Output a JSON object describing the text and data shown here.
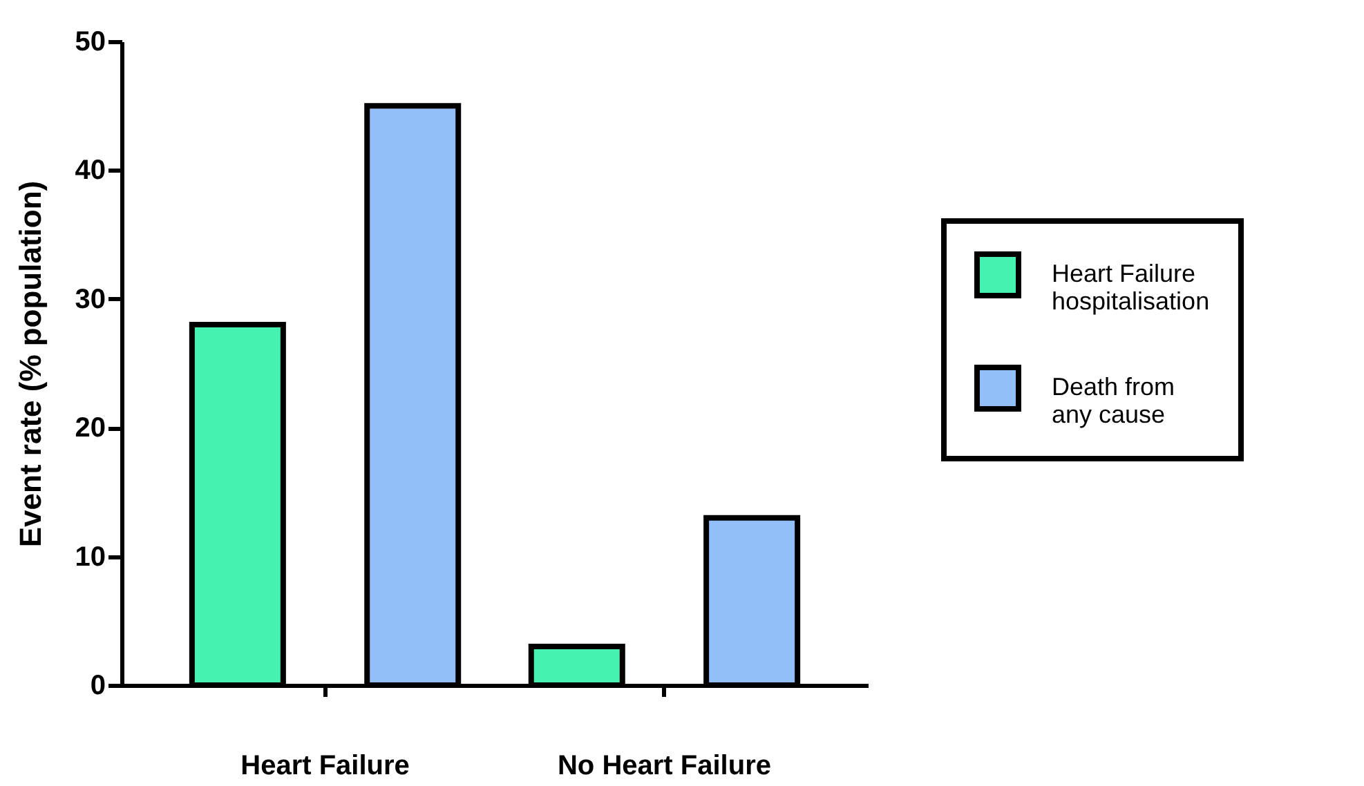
{
  "chart_data": {
    "type": "bar",
    "ylabel": "Event rate (% population)",
    "categories": [
      "Heart Failure",
      "No Heart Failure"
    ],
    "series": [
      {
        "name": "Heart Failure\nhospitalisation",
        "color": "#46f2b0",
        "values": [
          28,
          3
        ]
      },
      {
        "name": "Death from\nany cause",
        "color": "#93bff8",
        "values": [
          45,
          13
        ]
      }
    ],
    "ylim": [
      0,
      50
    ],
    "yticks": [
      0,
      10,
      20,
      30,
      40,
      50
    ],
    "grid": false,
    "legend": "right"
  }
}
